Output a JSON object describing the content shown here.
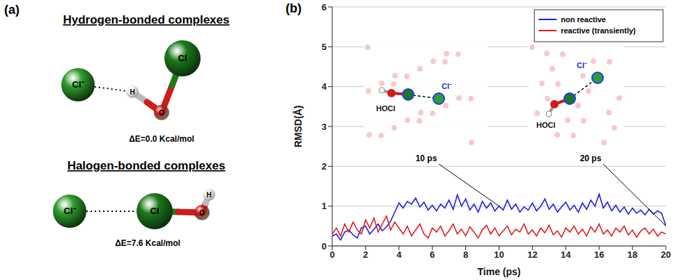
{
  "panel_a": {
    "label": "(a)",
    "complexes": [
      {
        "title": "Hydrogen-bonded complexes",
        "atoms": [
          "Cl⁻",
          "H",
          "O",
          "Cl"
        ],
        "energy": "ΔE=0.0 Kcal/mol"
      },
      {
        "title": "Halogen-bonded complexes",
        "atoms": [
          "Cl⁻",
          "Cl",
          "O",
          "H"
        ],
        "energy": "ΔE=7.6 Kcal/mol"
      }
    ]
  },
  "panel_b_label": "(b)",
  "chart_data": {
    "type": "line",
    "xlabel": "Time (ps)",
    "ylabel": "RMSD(Å)",
    "xlim": [
      0,
      20
    ],
    "xticks": [
      0,
      2,
      4,
      6,
      8,
      10,
      12,
      14,
      16,
      18,
      20
    ],
    "ylim": [
      0,
      6
    ],
    "yticks": [
      0,
      1,
      2,
      3,
      4,
      5,
      6
    ],
    "grid": true,
    "legend": "upper right",
    "x": [
      0,
      0.25,
      0.5,
      0.75,
      1,
      1.25,
      1.5,
      1.75,
      2,
      2.25,
      2.5,
      2.75,
      3,
      3.25,
      3.5,
      3.75,
      4,
      4.25,
      4.5,
      4.75,
      5,
      5.25,
      5.5,
      5.75,
      6,
      6.25,
      6.5,
      6.75,
      7,
      7.25,
      7.5,
      7.75,
      8,
      8.25,
      8.5,
      8.75,
      9,
      9.25,
      9.5,
      9.75,
      10,
      10.25,
      10.5,
      10.75,
      11,
      11.25,
      11.5,
      11.75,
      12,
      12.25,
      12.5,
      12.75,
      13,
      13.25,
      13.5,
      13.75,
      14,
      14.25,
      14.5,
      14.75,
      15,
      15.25,
      15.5,
      15.75,
      16,
      16.25,
      16.5,
      16.75,
      17,
      17.25,
      17.5,
      17.75,
      18,
      18.25,
      18.5,
      18.75,
      19,
      19.25,
      19.5,
      19.75,
      20
    ],
    "series": [
      {
        "name": "non reactive",
        "color": "#1f1fe0",
        "values": [
          0.25,
          0.3,
          0.15,
          0.35,
          0.4,
          0.28,
          0.2,
          0.45,
          0.5,
          0.3,
          0.42,
          0.55,
          0.38,
          0.48,
          0.62,
          0.85,
          1.08,
          0.95,
          1.12,
          1.05,
          1.2,
          0.98,
          1.1,
          0.9,
          1.02,
          0.88,
          1.05,
          0.95,
          1.15,
          0.92,
          1.28,
          1.0,
          1.18,
          0.9,
          1.05,
          0.85,
          1.12,
          0.95,
          1.08,
          0.88,
          1.0,
          0.9,
          1.15,
          0.92,
          1.05,
          0.85,
          0.98,
          0.9,
          1.08,
          0.88,
          1.0,
          1.18,
          0.92,
          1.05,
          0.85,
          0.98,
          1.1,
          0.9,
          1.02,
          0.85,
          1.08,
          0.92,
          1.15,
          1.0,
          1.3,
          0.95,
          1.1,
          0.88,
          1.02,
          0.85,
          0.98,
          0.8,
          0.95,
          0.82,
          0.9,
          0.78,
          0.92,
          0.8,
          0.88,
          0.82,
          0.5
        ]
      },
      {
        "name": "reactive (transiently)",
        "color": "#e01f1f",
        "values": [
          0.3,
          0.45,
          0.25,
          0.55,
          0.35,
          0.6,
          0.4,
          0.3,
          0.65,
          0.45,
          0.7,
          0.35,
          0.55,
          0.75,
          0.4,
          0.6,
          0.45,
          0.3,
          0.5,
          0.25,
          0.4,
          0.55,
          0.3,
          0.2,
          0.45,
          0.35,
          0.5,
          0.25,
          0.38,
          0.55,
          0.3,
          0.42,
          0.25,
          0.48,
          0.35,
          0.2,
          0.4,
          0.52,
          0.3,
          0.45,
          0.25,
          0.38,
          0.5,
          0.28,
          0.42,
          0.35,
          0.55,
          0.3,
          0.4,
          0.25,
          0.45,
          0.33,
          0.52,
          0.28,
          0.38,
          0.22,
          0.45,
          0.35,
          0.5,
          0.3,
          0.42,
          0.25,
          0.48,
          0.35,
          0.55,
          0.3,
          0.4,
          0.25,
          0.45,
          0.35,
          0.5,
          0.28,
          0.4,
          0.22,
          0.38,
          0.45,
          0.3,
          0.42,
          0.25,
          0.35,
          0.3
        ]
      }
    ],
    "annotations": [
      {
        "text": "10 ps",
        "x": 10,
        "labels": [
          "HOCl",
          "Cl⁻"
        ]
      },
      {
        "text": "20 ps",
        "x": 20,
        "labels": [
          "HOCl",
          "Cl⁻"
        ]
      }
    ]
  }
}
